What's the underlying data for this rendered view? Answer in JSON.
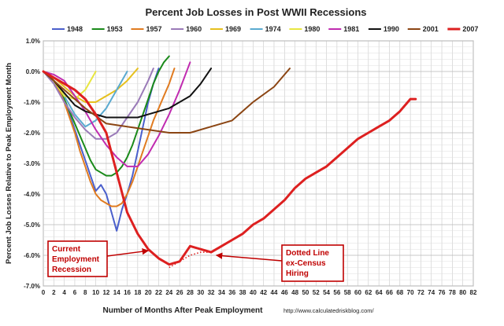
{
  "chart_data": {
    "type": "line",
    "title": "Percent Job Losses in Post WWII Recessions",
    "xlabel": "Number of Months After Peak Employment",
    "ylabel": "Percent Job Losses Relative to Peak Employment Month",
    "xlim": [
      0,
      82
    ],
    "ylim": [
      -7.0,
      1.0
    ],
    "x_ticks": [
      0,
      2,
      4,
      6,
      8,
      10,
      12,
      14,
      16,
      18,
      20,
      22,
      24,
      26,
      28,
      30,
      32,
      34,
      36,
      38,
      40,
      42,
      44,
      46,
      48,
      50,
      52,
      54,
      56,
      58,
      60,
      62,
      64,
      66,
      68,
      70,
      72,
      74,
      76,
      78,
      80,
      82
    ],
    "y_ticks": [
      {
        "value": 1.0,
        "label": "1.0%"
      },
      {
        "value": 0.0,
        "label": "0.0%"
      },
      {
        "value": -1.0,
        "label": "-1.0%"
      },
      {
        "value": -2.0,
        "label": "-2.0%"
      },
      {
        "value": -3.0,
        "label": "-3.0%"
      },
      {
        "value": -4.0,
        "label": "-4.0%"
      },
      {
        "value": -5.0,
        "label": "-5.0%"
      },
      {
        "value": -6.0,
        "label": "-6.0%"
      },
      {
        "value": -7.0,
        "label": "-7.0%"
      }
    ],
    "grid": true,
    "legend_position": "top",
    "source": "http://www.calculatedriskblog.com/",
    "series": [
      {
        "name": "1948",
        "color": "#4a5fcc",
        "width": 2,
        "x": [
          0,
          1,
          2,
          3,
          4,
          5,
          6,
          7,
          8,
          9,
          10,
          11,
          12,
          13,
          14,
          15,
          16,
          17,
          18,
          19,
          20,
          21,
          22
        ],
        "y": [
          0,
          -0.1,
          -0.3,
          -0.6,
          -1.0,
          -1.4,
          -1.9,
          -2.4,
          -2.9,
          -3.4,
          -3.9,
          -3.7,
          -4.0,
          -4.6,
          -5.2,
          -4.5,
          -4.0,
          -3.4,
          -2.6,
          -1.8,
          -1.0,
          -0.4,
          0.1
        ]
      },
      {
        "name": "1953",
        "color": "#1a8a1a",
        "width": 2,
        "x": [
          0,
          1,
          2,
          3,
          4,
          5,
          6,
          7,
          8,
          9,
          10,
          11,
          12,
          13,
          14,
          15,
          16,
          17,
          18,
          19,
          20,
          21,
          22,
          23,
          24
        ],
        "y": [
          0,
          -0.1,
          -0.3,
          -0.6,
          -0.9,
          -1.3,
          -1.7,
          -2.1,
          -2.5,
          -2.9,
          -3.2,
          -3.3,
          -3.4,
          -3.4,
          -3.3,
          -3.1,
          -2.8,
          -2.4,
          -1.9,
          -1.4,
          -0.9,
          -0.4,
          0.0,
          0.3,
          0.5
        ]
      },
      {
        "name": "1957",
        "color": "#e07b20",
        "width": 2,
        "x": [
          0,
          1,
          2,
          3,
          4,
          5,
          6,
          7,
          8,
          9,
          10,
          11,
          12,
          13,
          14,
          15,
          16,
          17,
          18,
          19,
          20,
          21,
          22,
          23,
          24,
          25
        ],
        "y": [
          0,
          -0.1,
          -0.3,
          -0.6,
          -1.0,
          -1.5,
          -2.0,
          -2.6,
          -3.1,
          -3.6,
          -4.0,
          -4.2,
          -4.3,
          -4.4,
          -4.4,
          -4.3,
          -4.0,
          -3.6,
          -3.1,
          -2.6,
          -2.1,
          -1.6,
          -1.2,
          -0.8,
          -0.4,
          0.1
        ]
      },
      {
        "name": "1960",
        "color": "#9a7ab8",
        "width": 2,
        "x": [
          0,
          2,
          4,
          6,
          8,
          10,
          12,
          14,
          16,
          18,
          20,
          21
        ],
        "y": [
          0,
          -0.4,
          -1.0,
          -1.5,
          -1.9,
          -2.2,
          -2.2,
          -2.0,
          -1.5,
          -1.0,
          -0.3,
          0.1
        ]
      },
      {
        "name": "1969",
        "color": "#e6c01e",
        "width": 2,
        "x": [
          0,
          2,
          4,
          6,
          8,
          10,
          12,
          14,
          16,
          18
        ],
        "y": [
          0,
          -0.2,
          -0.5,
          -0.8,
          -1.0,
          -1.0,
          -0.8,
          -0.6,
          -0.3,
          0.1
        ]
      },
      {
        "name": "1974",
        "color": "#5aaad0",
        "width": 2,
        "x": [
          0,
          2,
          4,
          6,
          8,
          10,
          12,
          14,
          16
        ],
        "y": [
          0,
          -0.3,
          -0.8,
          -1.4,
          -1.8,
          -1.6,
          -1.2,
          -0.6,
          0.0
        ]
      },
      {
        "name": "1980",
        "color": "#e8e640",
        "width": 2,
        "x": [
          0,
          2,
          4,
          6,
          8,
          10
        ],
        "y": [
          0,
          -0.3,
          -0.8,
          -0.9,
          -0.6,
          0.0
        ]
      },
      {
        "name": "1981",
        "color": "#c02bb0",
        "width": 2,
        "x": [
          0,
          2,
          4,
          6,
          8,
          10,
          12,
          14,
          16,
          18,
          20,
          22,
          24,
          26,
          28
        ],
        "y": [
          0,
          -0.1,
          -0.3,
          -0.8,
          -1.3,
          -1.9,
          -2.4,
          -2.8,
          -3.1,
          -3.1,
          -2.7,
          -2.1,
          -1.4,
          -0.6,
          0.3
        ]
      },
      {
        "name": "1990",
        "color": "#111111",
        "width": 2,
        "x": [
          0,
          2,
          4,
          6,
          8,
          10,
          12,
          14,
          16,
          18,
          20,
          22,
          24,
          26,
          28,
          30,
          32
        ],
        "y": [
          0,
          -0.3,
          -0.7,
          -1.1,
          -1.3,
          -1.4,
          -1.5,
          -1.5,
          -1.5,
          -1.5,
          -1.4,
          -1.3,
          -1.2,
          -1.0,
          -0.8,
          -0.4,
          0.1
        ]
      },
      {
        "name": "2001",
        "color": "#8b4513",
        "width": 2,
        "x": [
          0,
          4,
          8,
          12,
          16,
          20,
          24,
          28,
          32,
          36,
          40,
          44,
          47
        ],
        "y": [
          0,
          -0.6,
          -1.2,
          -1.7,
          -1.8,
          -1.9,
          -2.0,
          -2.0,
          -1.8,
          -1.6,
          -1.0,
          -0.5,
          0.1
        ]
      },
      {
        "name": "2007",
        "color": "#dd2020",
        "width": 3,
        "x": [
          0,
          2,
          4,
          6,
          8,
          10,
          12,
          14,
          16,
          18,
          20,
          22,
          24,
          26,
          28,
          30,
          32,
          34,
          36,
          38,
          40,
          42,
          44,
          46,
          48,
          50,
          52,
          54,
          56,
          58,
          60,
          62,
          64,
          66,
          68,
          70,
          71
        ],
        "y": [
          0,
          -0.2,
          -0.4,
          -0.6,
          -0.9,
          -1.4,
          -2.0,
          -3.3,
          -4.6,
          -5.3,
          -5.8,
          -6.1,
          -6.3,
          -6.2,
          -5.7,
          -5.8,
          -5.9,
          -5.7,
          -5.5,
          -5.3,
          -5.0,
          -4.8,
          -4.5,
          -4.2,
          -3.8,
          -3.5,
          -3.3,
          -3.1,
          -2.8,
          -2.5,
          -2.2,
          -2.0,
          -1.8,
          -1.6,
          -1.3,
          -0.9,
          -0.9
        ]
      }
    ],
    "dotted_series": {
      "color": "#dd2020",
      "x": [
        24,
        26,
        28,
        30,
        32
      ],
      "y": [
        -6.4,
        -6.2,
        -6.0,
        -5.9,
        -5.9
      ]
    },
    "annotations": [
      {
        "id": "current",
        "text": [
          "Current",
          "Employment",
          "Recession"
        ],
        "color": "#c00000"
      },
      {
        "id": "dotted",
        "text": [
          "Dotted Line",
          "ex-Census",
          "Hiring"
        ],
        "color": "#c00000"
      }
    ]
  }
}
